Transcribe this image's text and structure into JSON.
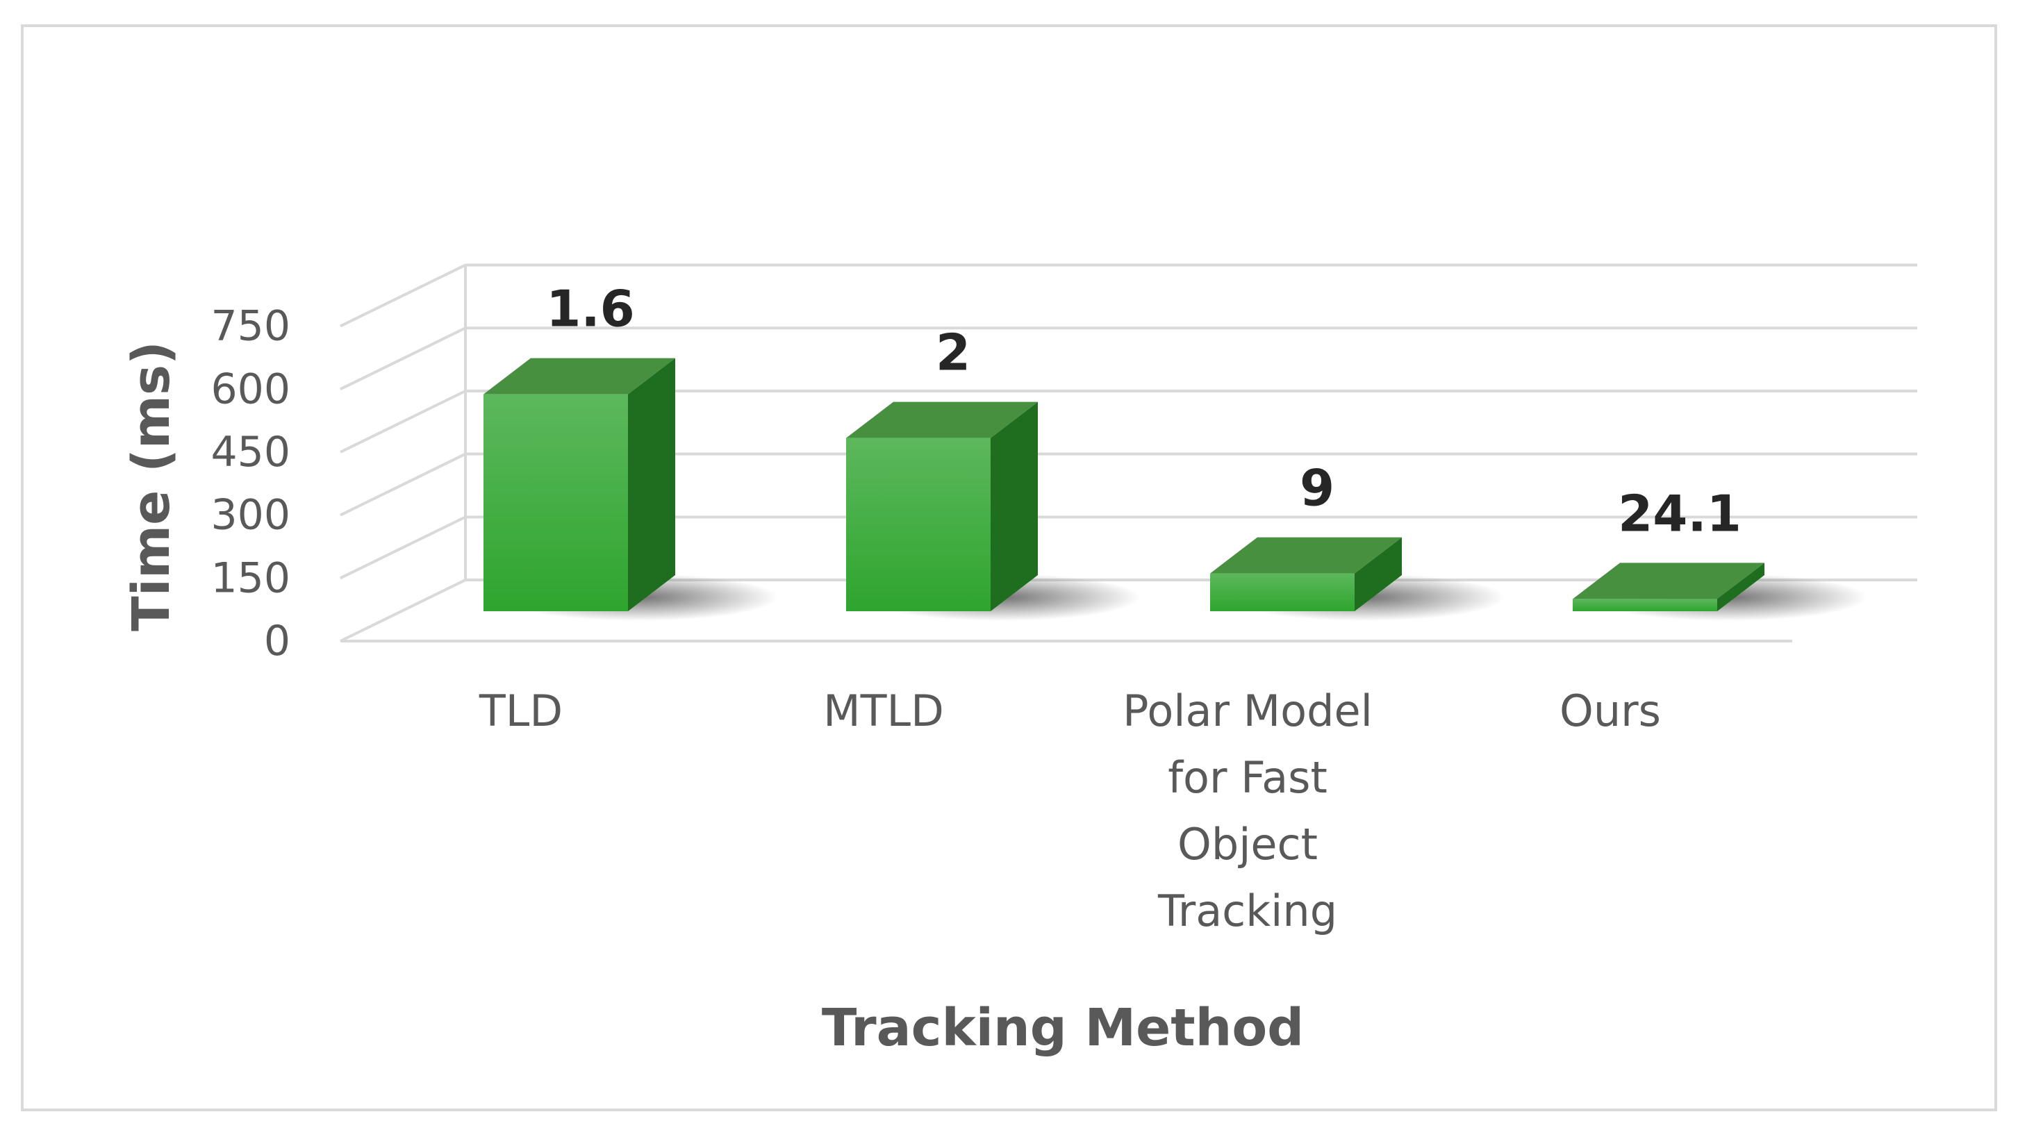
{
  "chart_data": {
    "type": "bar",
    "style": "3d-column",
    "xlabel": "Tracking Method",
    "ylabel": "Time (ms)",
    "ylim": [
      0,
      750
    ],
    "yticks": [
      "0",
      "150",
      "300",
      "450",
      "600",
      "750"
    ],
    "grid": true,
    "legend": "none",
    "categories": [
      [
        "TLD"
      ],
      [
        "MTLD"
      ],
      [
        "Polar Model",
        "for Fast",
        "Object",
        "Tracking"
      ],
      [
        "Ours"
      ]
    ],
    "values": [
      620,
      495,
      108,
      35
    ],
    "data_labels": [
      "1.6",
      "2",
      "9",
      "24.1"
    ],
    "colors": {
      "bar_front_top": "#5cb85c",
      "bar_front_bottom": "#2ea52e",
      "bar_side": "#1f6e1f",
      "bar_top": "#46903f",
      "grid": "#d9d9d9"
    }
  }
}
